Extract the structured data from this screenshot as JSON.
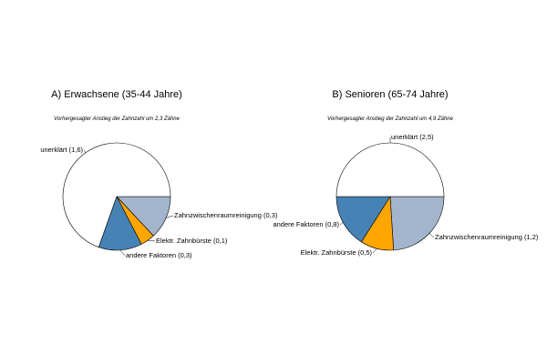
{
  "chart_data": [
    {
      "type": "pie",
      "title": "A) Erwachsene (35-44 Jahre)",
      "subtitle": "Vorhergesagter Anstieg der Zahnzahl um 2,3 Zähne",
      "slices": [
        {
          "label": "Zahnzwischenraumreinigung (0,3)",
          "value": 0.3,
          "color": "#a3b5cc"
        },
        {
          "label": "Elektr. Zahnbürste (0,1)",
          "value": 0.1,
          "color": "#ffa500"
        },
        {
          "label": "andere Faktoren (0,3)",
          "value": 0.3,
          "color": "#4682b4"
        },
        {
          "label": "unerklärt (1,6)",
          "value": 1.6,
          "color": "#ffffff"
        }
      ]
    },
    {
      "type": "pie",
      "title": "B) Senioren (65-74 Jahre)",
      "subtitle": "Vorhergesagter Anstieg der Zahnzahl um 4,9 Zähne",
      "slices": [
        {
          "label": "Zahnzwischenraumreinigung (1,2)",
          "value": 1.2,
          "color": "#a3b5cc"
        },
        {
          "label": "Elektr. Zahnbürste (0,5)",
          "value": 0.5,
          "color": "#ffa500"
        },
        {
          "label": "andere Faktoren (0,8)",
          "value": 0.8,
          "color": "#4682b4"
        },
        {
          "label": "unerklärt (2,5)",
          "value": 2.5,
          "color": "#ffffff"
        }
      ]
    }
  ]
}
